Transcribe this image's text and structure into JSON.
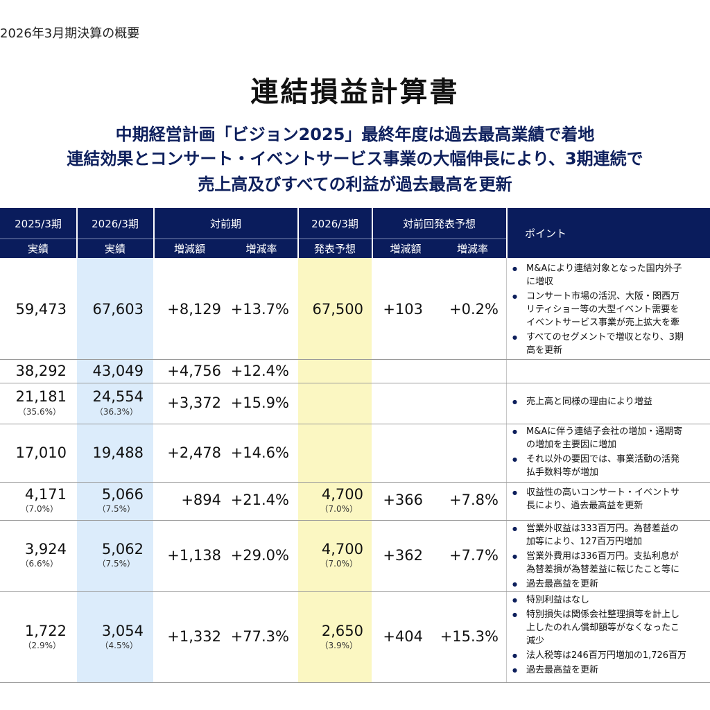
{
  "header": {
    "section": "2026年3月期決算の概要",
    "title": "連結損益計算書",
    "subtitle_lines": [
      "中期経営計画「ビジョン2025」最終年度は過去最高業績で着地",
      "連結効果とコンサート・イベントサービス事業の大幅伸長により、3期連続で",
      "売上高及びすべての利益が過去最高を更新"
    ]
  },
  "table": {
    "headers": {
      "fy2025": "2025/3期",
      "fy2025_sub": "実績",
      "fy2026": "2026/3期",
      "fy2026_sub": "実績",
      "yoy": "対前期",
      "yoy_amount": "増減額",
      "yoy_rate": "増減率",
      "forecast": "2026/3期",
      "forecast_sub": "発表予想",
      "vs_forecast": "対前回発表予想",
      "vs_forecast_amount": "増減額",
      "vs_forecast_rate": "増減率",
      "points": "ポイント"
    },
    "rows": [
      {
        "fy2025": "59,473",
        "fy2025_ratio": "",
        "fy2026": "67,603",
        "fy2026_ratio": "",
        "yoy_amount": "+8,129",
        "yoy_rate": "+13.7%",
        "forecast": "67,500",
        "forecast_ratio": "",
        "vs_amount": "+103",
        "vs_rate": "+0.2%",
        "points": [
          "M&Aにより連結対象となった国内外子\nに増収",
          "コンサート市場の活況、大阪・関西万\nリティショー等の大型イベント需要を\nイベントサービス事業が売上拡大を牽",
          "すべてのセグメントで増収となり、3期\n高を更新"
        ]
      },
      {
        "fy2025": "38,292",
        "fy2025_ratio": "",
        "fy2026": "43,049",
        "fy2026_ratio": "",
        "yoy_amount": "+4,756",
        "yoy_rate": "+12.4%",
        "forecast": "",
        "forecast_ratio": "",
        "vs_amount": "",
        "vs_rate": "",
        "points": []
      },
      {
        "fy2025": "21,181",
        "fy2025_ratio": "（35.6%）",
        "fy2026": "24,554",
        "fy2026_ratio": "（36.3%）",
        "yoy_amount": "+3,372",
        "yoy_rate": "+15.9%",
        "forecast": "",
        "forecast_ratio": "",
        "vs_amount": "",
        "vs_rate": "",
        "points": [
          "売上高と同様の理由により増益"
        ]
      },
      {
        "fy2025": "17,010",
        "fy2025_ratio": "",
        "fy2026": "19,488",
        "fy2026_ratio": "",
        "yoy_amount": "+2,478",
        "yoy_rate": "+14.6%",
        "forecast": "",
        "forecast_ratio": "",
        "vs_amount": "",
        "vs_rate": "",
        "points": [
          "M&Aに伴う連結子会社の増加・通期寄\nの増加を主要因に増加",
          "それ以外の要因では、事業活動の活発\n払手数料等が増加"
        ]
      },
      {
        "fy2025": "4,171",
        "fy2025_ratio": "（7.0%）",
        "fy2026": "5,066",
        "fy2026_ratio": "（7.5%）",
        "yoy_amount": "+894",
        "yoy_rate": "+21.4%",
        "forecast": "4,700",
        "forecast_ratio": "（7.0%）",
        "vs_amount": "+366",
        "vs_rate": "+7.8%",
        "points": [
          "収益性の高いコンサート・イベントサ\n長により、過去最高益を更新"
        ]
      },
      {
        "fy2025": "3,924",
        "fy2025_ratio": "（6.6%）",
        "fy2026": "5,062",
        "fy2026_ratio": "（7.5%）",
        "yoy_amount": "+1,138",
        "yoy_rate": "+29.0%",
        "forecast": "4,700",
        "forecast_ratio": "（7.0%）",
        "vs_amount": "+362",
        "vs_rate": "+7.7%",
        "points": [
          "営業外収益は333百万円。為替差益の\n加等により、127百万円増加",
          "営業外費用は336百万円。支払利息が\n為替差損が為替差益に転じたこと等に",
          "過去最高益を更新"
        ]
      },
      {
        "fy2025": "1,722",
        "fy2025_ratio": "（2.9%）",
        "fy2026": "3,054",
        "fy2026_ratio": "（4.5%）",
        "yoy_amount": "+1,332",
        "yoy_rate": "+77.3%",
        "forecast": "2,650",
        "forecast_ratio": "（3.9%）",
        "vs_amount": "+404",
        "vs_rate": "+15.3%",
        "points": [
          "特別利益はなし",
          "特別損失は関係会社整理損等を計上し\n上したのれん償却額等がなくなったこ\n減少",
          "法人税等は246百万円増加の1,726百万",
          "過去最高益を更新"
        ]
      }
    ]
  }
}
